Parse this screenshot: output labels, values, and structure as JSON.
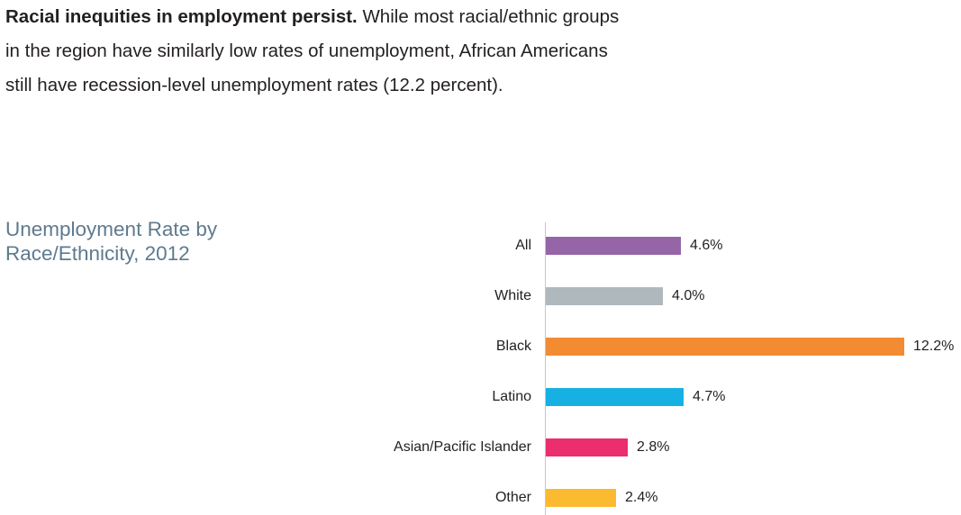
{
  "header": {
    "bold": "Racial inequities in employment persist.",
    "rest": " While most racial/ethnic groups in the region have similarly low rates of unemployment, African Americans still have recession-level unemployment rates (12.2 percent)."
  },
  "chart": {
    "title_line1": "Unemployment Rate by",
    "title_line2": "Race/Ethnicity, 2012",
    "title_color": "#5e7a8e"
  },
  "chart_data": {
    "type": "bar",
    "orientation": "horizontal",
    "title": "Unemployment Rate by Race/Ethnicity, 2012",
    "categories": [
      "All",
      "White",
      "Black",
      "Latino",
      "Asian/Pacific Islander",
      "Other"
    ],
    "values": [
      4.6,
      4.0,
      12.2,
      4.7,
      2.8,
      2.4
    ],
    "value_labels": [
      "4.6%",
      "4.0%",
      "12.2%",
      "4.7%",
      "2.8%",
      "2.4%"
    ],
    "colors": [
      "#9565a7",
      "#afb8bd",
      "#f38b33",
      "#16b0e3",
      "#ea2e6e",
      "#fcba31"
    ],
    "axis_line_color": "#c3c8cb",
    "xlim": [
      0,
      12.2
    ],
    "grid": false,
    "legend": false,
    "data_labels": true
  }
}
